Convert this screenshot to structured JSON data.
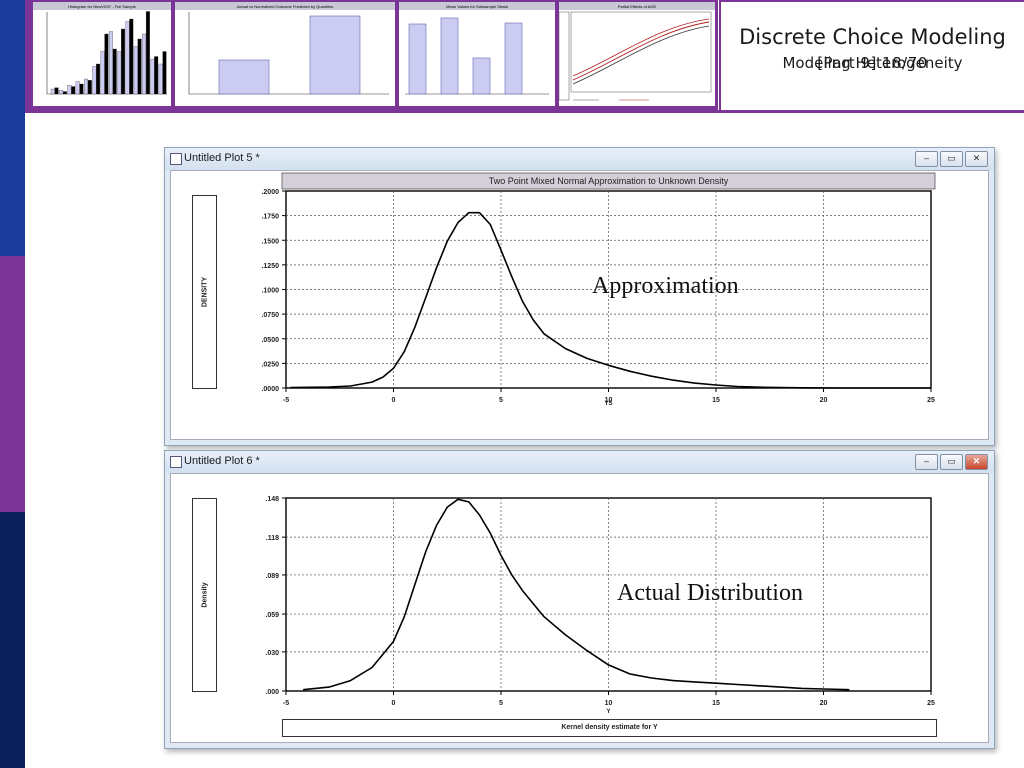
{
  "slide": {
    "title": "Discrete Choice Modeling",
    "subtitle_a": "[Part 9]   18/70",
    "subtitle_b": "Modeling Heterogeneity",
    "colors": {
      "stripe_top": "#1a3a9c",
      "stripe_mid": "#7a3596",
      "stripe_bottom": "#0a1f5c",
      "accent": "#7a3596"
    }
  },
  "thumbnails": [
    {
      "title": "Histogram for NewVISIT - Full Sample"
    },
    {
      "title": "Actual vs Normalized Outcome Predicted by Quantiles"
    },
    {
      "title": "Mean Values for Subsample Strata"
    },
    {
      "title": "Partial Effects of AGE"
    }
  ],
  "plot5": {
    "window_title": "Untitled Plot 5 *",
    "ylabel": "DENSITY",
    "xlabel": "YS",
    "annotation": "Approximation",
    "chart_data": {
      "type": "line",
      "title": "Two Point Mixed Normal Approximation to Unknown Density",
      "xlabel": "YS",
      "ylabel": "DENSITY",
      "xlim": [
        -5,
        25
      ],
      "ylim": [
        0,
        0.2
      ],
      "x_ticks": [
        "-5",
        "0",
        "5",
        "10",
        "15",
        "20",
        "25"
      ],
      "y_ticks": [
        ".0000",
        ".0250",
        ".0500",
        ".0750",
        ".1000",
        ".1250",
        ".1500",
        ".1750",
        ".2000"
      ],
      "x": [
        -4.8,
        -3,
        -2,
        -1,
        -0.5,
        0,
        0.5,
        1,
        1.5,
        2,
        2.5,
        3,
        3.5,
        4,
        4.5,
        5,
        5.5,
        6,
        6.5,
        7,
        8,
        9,
        10,
        11,
        12,
        13,
        14,
        15,
        16,
        17,
        18,
        19,
        20,
        21,
        22,
        23,
        24,
        25
      ],
      "y": [
        0.0005,
        0.001,
        0.002,
        0.006,
        0.011,
        0.02,
        0.037,
        0.062,
        0.092,
        0.122,
        0.149,
        0.168,
        0.178,
        0.178,
        0.166,
        0.14,
        0.113,
        0.088,
        0.069,
        0.055,
        0.04,
        0.03,
        0.023,
        0.017,
        0.012,
        0.008,
        0.005,
        0.003,
        0.0015,
        0.0008,
        0.0004,
        0.0002,
        0.0001,
        5e-05,
        0.0,
        0.0,
        0.0,
        0.0
      ]
    }
  },
  "plot6": {
    "window_title": "Untitled Plot 6 *",
    "ylabel": "Density",
    "xlabel": "Y",
    "annotation": "Actual Distribution",
    "footer": "Kernel density estimate for     Y",
    "chart_data": {
      "type": "line",
      "title": "",
      "xlabel": "Y",
      "ylabel": "Density",
      "xlim": [
        -5,
        25
      ],
      "ylim": [
        0,
        0.148
      ],
      "x_ticks": [
        "-5",
        "0",
        "5",
        "10",
        "15",
        "20",
        "25"
      ],
      "y_ticks": [
        ".000",
        ".030",
        ".059",
        ".089",
        ".118",
        ".148"
      ],
      "y_tick_values": [
        0,
        0.03,
        0.059,
        0.089,
        0.118,
        0.148
      ],
      "x": [
        -4.2,
        -3,
        -2,
        -1,
        0,
        0.5,
        1,
        1.5,
        2,
        2.5,
        3,
        3.5,
        4,
        4.5,
        5,
        5.5,
        6,
        7,
        8,
        9,
        10,
        11,
        12,
        13,
        14,
        15,
        16,
        17,
        18,
        19,
        20,
        21.2
      ],
      "y": [
        0.001,
        0.003,
        0.008,
        0.018,
        0.038,
        0.057,
        0.082,
        0.107,
        0.127,
        0.141,
        0.147,
        0.145,
        0.135,
        0.121,
        0.104,
        0.089,
        0.077,
        0.057,
        0.043,
        0.031,
        0.02,
        0.013,
        0.01,
        0.008,
        0.007,
        0.006,
        0.005,
        0.004,
        0.003,
        0.002,
        0.0015,
        0.001
      ]
    }
  },
  "window_controls": {
    "minimize": "–",
    "restore": "▭",
    "close": "✕"
  }
}
